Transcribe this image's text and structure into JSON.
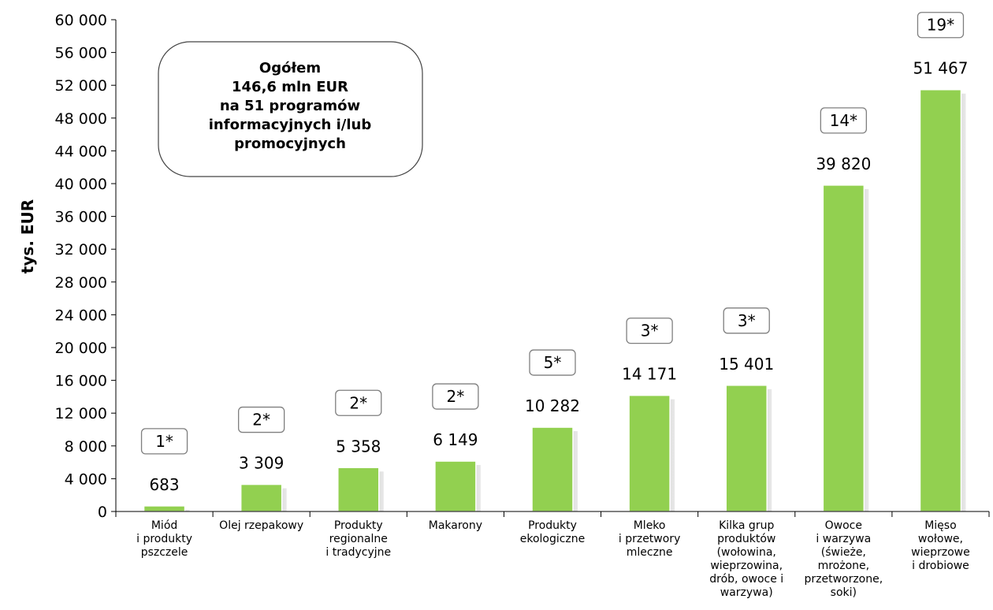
{
  "chart_data": {
    "type": "bar",
    "ylabel": "tys. EUR",
    "ylim": [
      0,
      60000
    ],
    "yticks": [
      "0",
      "4 000",
      "8 000",
      "12 000",
      "16 000",
      "20 000",
      "24 000",
      "28 000",
      "32 000",
      "36 000",
      "40 000",
      "44 000",
      "48 000",
      "52 000",
      "56 000",
      "60 000"
    ],
    "categories": [
      [
        "Miód",
        "i produkty",
        "pszczele"
      ],
      [
        "Olej rzepakowy"
      ],
      [
        "Produkty",
        "regionalne",
        "i tradycyjne"
      ],
      [
        "Makarony"
      ],
      [
        "Produkty",
        "ekologiczne"
      ],
      [
        "Mleko",
        "i przetwory",
        "mleczne"
      ],
      [
        "Kilka grup",
        "produktów",
        "(wołowina,",
        "wieprzowina,",
        "drób, owoce i",
        "warzywa)"
      ],
      [
        "Owoce",
        "i warzywa",
        "(świeże,",
        "mrożone,",
        "przetworzone,",
        "soki)"
      ],
      [
        "Mięso",
        "wołowe,",
        "wieprzowe",
        "i drobiowe"
      ]
    ],
    "values": [
      683,
      3309,
      5358,
      6149,
      10282,
      14171,
      15401,
      39820,
      51467
    ],
    "value_labels": [
      "683",
      "3 309",
      "5 358",
      "6 149",
      "10 282",
      "14 171",
      "15 401",
      "39 820",
      "51 467"
    ],
    "program_counts": [
      "1*",
      "2*",
      "2*",
      "2*",
      "5*",
      "3*",
      "3*",
      "14*",
      "19*"
    ],
    "bar_color": "#92d050",
    "summary_box": [
      "Ogółem",
      "146,6 mln EUR",
      "na 51 programów",
      "informacyjnych i/lub",
      "promocyjnych"
    ]
  }
}
